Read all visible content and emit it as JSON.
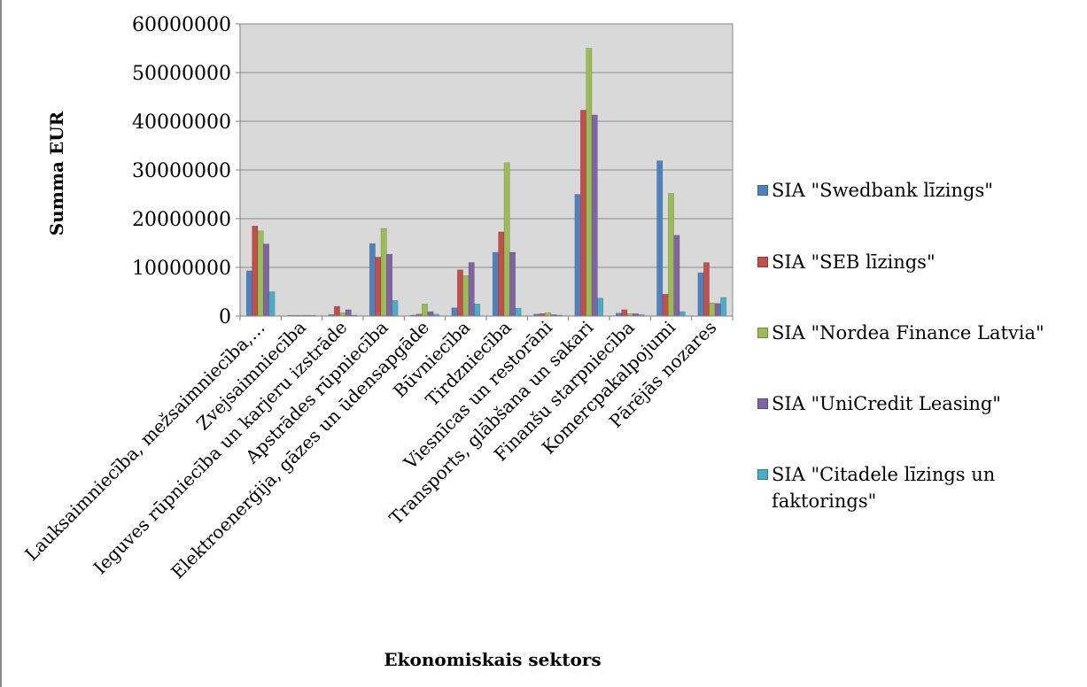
{
  "chart_data": {
    "type": "bar",
    "xlabel": "Ekonomiskais sektors",
    "ylabel": "Summa EUR",
    "ylim": [
      0,
      60000000
    ],
    "y_ticks": [
      "0",
      "10000000",
      "20000000",
      "30000000",
      "40000000",
      "50000000",
      "60000000"
    ],
    "grid": true,
    "legend_position": "right",
    "categories": [
      "Lauksaimniecība, mežsaimniecība,…",
      "Zvejsaimniecība",
      "Ieguves rūpniecība un karjeru izstrāde",
      "Apstrādes rūpniecība",
      "Elektroenerģija, gāzes un ūdensapgāde",
      "Būvniecība",
      "Tirdzniecība",
      "Viesnīcas un restorāni",
      "Transports, glābšana un sakari",
      "Finanšu starpniecība",
      "Komercpakalpojumi",
      "Pārējās nozares"
    ],
    "series": [
      {
        "name": "SIA \"Swedbank līzings\"",
        "color": "#4f81bd",
        "values": [
          9300000,
          100000,
          300000,
          14900000,
          200000,
          1700000,
          13100000,
          400000,
          25000000,
          600000,
          31900000,
          8900000
        ]
      },
      {
        "name": "SIA \"SEB līzings\"",
        "color": "#c0504d",
        "values": [
          18500000,
          100000,
          2000000,
          12100000,
          400000,
          9500000,
          17300000,
          500000,
          42300000,
          1300000,
          4500000,
          11000000
        ]
      },
      {
        "name": "SIA \"Nordea Finance Latvia\"",
        "color": "#9bbb59",
        "values": [
          17500000,
          100000,
          700000,
          18000000,
          2500000,
          8300000,
          31500000,
          700000,
          55000000,
          500000,
          25200000,
          2700000
        ]
      },
      {
        "name": "SIA \"UniCredit Leasing\"",
        "color": "#8064a2",
        "values": [
          14800000,
          100000,
          1300000,
          12700000,
          900000,
          11000000,
          13100000,
          300000,
          41300000,
          500000,
          16600000,
          2600000
        ]
      },
      {
        "name": "SIA \"Citadele līzings un faktorings\"",
        "color": "#4bacc6",
        "values": [
          5000000,
          100000,
          200000,
          3200000,
          400000,
          2500000,
          1600000,
          200000,
          3700000,
          300000,
          900000,
          3800000
        ]
      }
    ]
  },
  "legend_lines": [
    [
      "SIA \"Swedbank līzings\""
    ],
    [
      "SIA \"SEB līzings\""
    ],
    [
      "SIA \"Nordea Finance Latvia\""
    ],
    [
      "SIA \"UniCredit Leasing\""
    ],
    [
      "SIA \"Citadele līzings un",
      "faktorings\""
    ]
  ]
}
